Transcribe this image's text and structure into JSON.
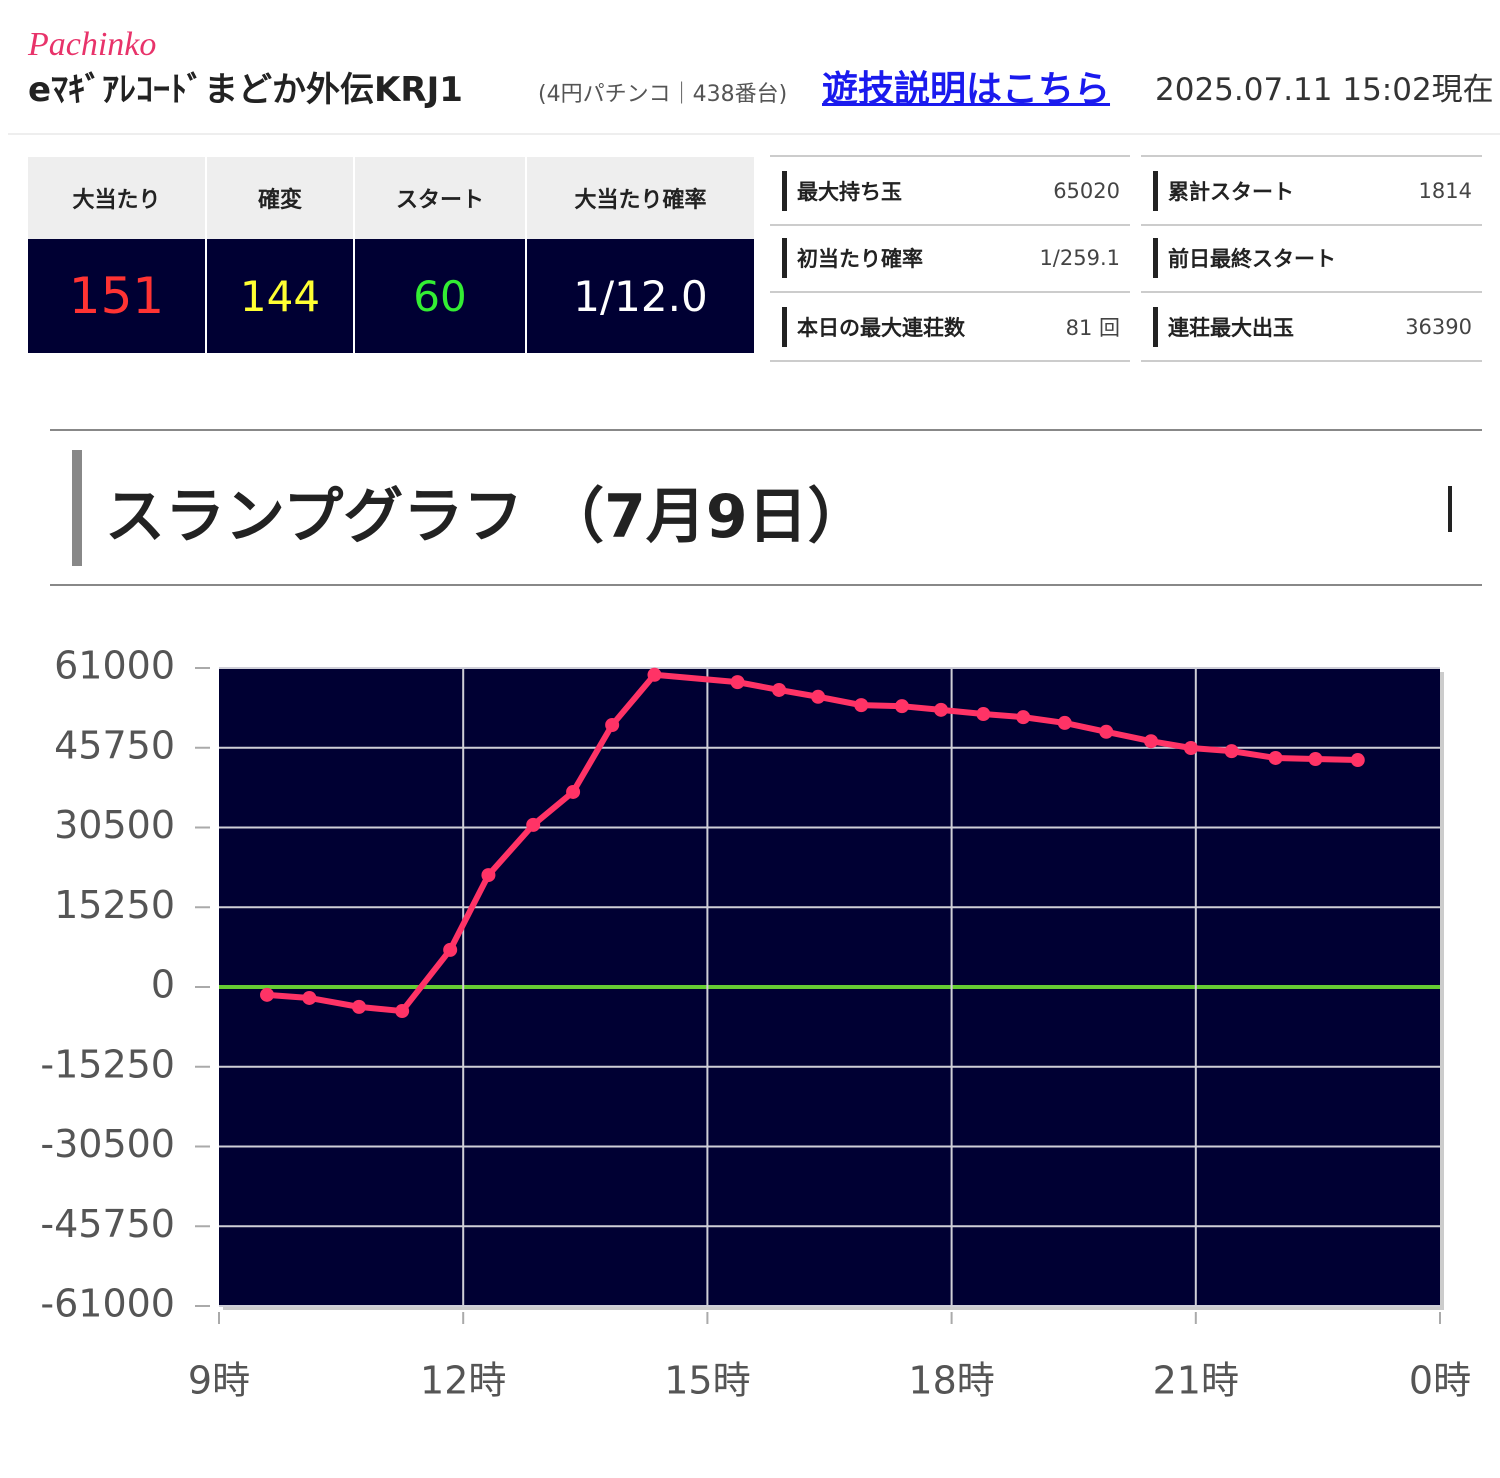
{
  "header": {
    "category": "Pachinko",
    "machine": "eﾏｷﾞｱﾚｺｰﾄﾞまどか外伝KRJ1",
    "info": "(4円パチンコ｜438番台)",
    "link": "遊技説明はこちら",
    "timestamp": "2025.07.11 15:02現在"
  },
  "stats": [
    {
      "label": "大当たり",
      "value": 151
    },
    {
      "label": "確変",
      "value": 144
    },
    {
      "label": "スタート",
      "value": 60
    },
    {
      "label": "大当たり確率",
      "value": "1/12.0"
    }
  ],
  "details": [
    {
      "label": "最大持ち玉",
      "value": 65020
    },
    {
      "label": "累計スタート",
      "value": 1814
    },
    {
      "label": "初当たり確率",
      "value": "1/259.1"
    },
    {
      "label": "前日最終スタート"
    },
    {
      "label": "本日の最大連荘数",
      "value": "81 回"
    },
    {
      "label": "連荘最大出玉",
      "value": 36390
    }
  ],
  "section_title": "スランプグラフ （7月9日）",
  "chart_data": {
    "type": "line",
    "color": "#ff3366",
    "zero_line_color": "#66cc33",
    "grid": true,
    "x": [
      9.59,
      10.11,
      10.72,
      11.25,
      11.84,
      12.31,
      12.86,
      13.35,
      13.83,
      14.35,
      15.37,
      15.88,
      16.36,
      16.89,
      17.39,
      17.87,
      18.39,
      18.88,
      19.39,
      19.9,
      20.45,
      20.94,
      21.44,
      21.98,
      22.47,
      22.99
    ],
    "values": [
      -1500,
      -2100,
      -3800,
      -4600,
      7100,
      21400,
      31000,
      37300,
      50100,
      59700,
      58300,
      56800,
      55500,
      53900,
      53700,
      53000,
      52200,
      51600,
      50500,
      48800,
      47000,
      45700,
      45100,
      43800,
      43600,
      43400
    ],
    "xlim": [
      9,
      24
    ],
    "xticks": [
      {
        "value": 9,
        "label": "9時"
      },
      {
        "value": 12,
        "label": "12時"
      },
      {
        "value": 15,
        "label": "15時"
      },
      {
        "value": 18,
        "label": "18時"
      },
      {
        "value": 21,
        "label": "21時"
      },
      {
        "value": 24,
        "label": "0時"
      }
    ],
    "ylim": [
      -61000,
      61000
    ],
    "yticks": [
      61000,
      45750,
      30500,
      15250,
      0,
      -15250,
      -30500,
      -45750,
      -61000
    ]
  }
}
